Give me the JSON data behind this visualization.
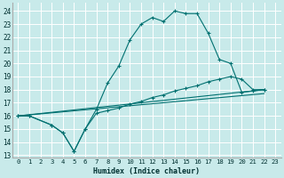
{
  "title": "",
  "xlabel": "Humidex (Indice chaleur)",
  "bg_color": "#c8eaea",
  "grid_color": "#ffffff",
  "line_color": "#007070",
  "xlim": [
    -0.5,
    23.5
  ],
  "ylim": [
    12.8,
    24.6
  ],
  "yticks": [
    13,
    14,
    15,
    16,
    17,
    18,
    19,
    20,
    21,
    22,
    23,
    24
  ],
  "xticks": [
    0,
    1,
    2,
    3,
    4,
    5,
    6,
    7,
    8,
    9,
    10,
    11,
    12,
    13,
    14,
    15,
    16,
    17,
    18,
    19,
    20,
    21,
    22,
    23
  ],
  "line1_x": [
    0,
    1,
    3,
    4,
    5,
    6,
    7,
    8,
    9,
    10,
    11,
    12,
    13,
    14,
    15,
    16,
    17,
    18,
    19,
    20,
    21,
    22
  ],
  "line1_y": [
    16.0,
    16.0,
    15.3,
    14.7,
    13.3,
    15.0,
    16.5,
    18.5,
    19.8,
    21.8,
    23.0,
    23.5,
    23.2,
    24.0,
    23.8,
    23.8,
    22.3,
    20.3,
    20.0,
    17.8,
    17.9,
    18.0
  ],
  "line2_x": [
    0,
    1,
    3,
    4,
    5,
    6,
    7,
    8,
    9,
    10,
    11,
    12,
    13,
    14,
    15,
    16,
    17,
    18,
    19,
    20,
    21,
    22
  ],
  "line2_y": [
    16.0,
    16.0,
    15.3,
    14.7,
    13.3,
    15.0,
    16.2,
    16.4,
    16.6,
    16.9,
    17.1,
    17.4,
    17.6,
    17.9,
    18.1,
    18.3,
    18.6,
    18.8,
    19.0,
    18.8,
    18.0,
    18.0
  ],
  "line3_x": [
    0,
    22
  ],
  "line3_y": [
    16.0,
    18.0
  ],
  "line4_x": [
    0,
    22
  ],
  "line4_y": [
    16.0,
    17.7
  ]
}
